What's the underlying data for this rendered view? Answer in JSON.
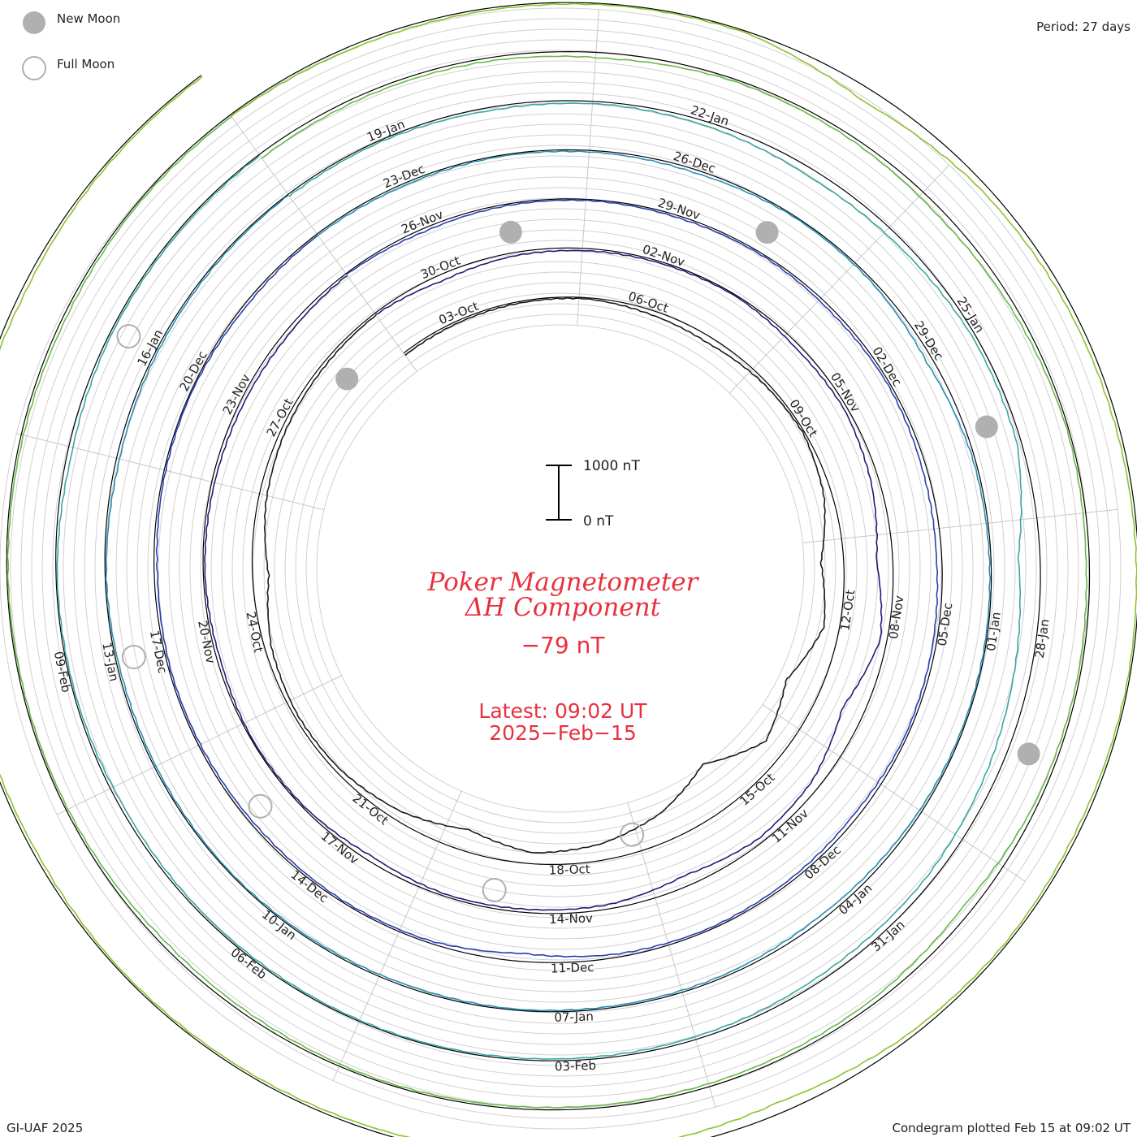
{
  "legend": {
    "new_moon_label": "New Moon",
    "full_moon_label": "Full Moon",
    "new_moon_color": "#b0b0b0",
    "full_moon_color": "#b0b0b0"
  },
  "period_label": "Period: 27 days",
  "footer": {
    "credit": "GI-UAF 2025",
    "plotted": "Condegram plotted Feb 15 at 09:02 UT"
  },
  "center": {
    "title_line1": "Poker Magnetometer",
    "title_line2": "ΔH Component",
    "current_value": "−79 nT",
    "latest": "Latest: 09:02 UT",
    "date": "2025−Feb−15",
    "scale_top": "1000 nT",
    "scale_bottom": "0 nT",
    "text_color": "#e8313f"
  },
  "chart_data": {
    "type": "line",
    "title": "Poker Magnetometer ΔH Component",
    "period_days": 27,
    "scale_nT": 1000,
    "date_labels": [
      "03-Oct",
      "06-Oct",
      "09-Oct",
      "12-Oct",
      "15-Oct",
      "18-Oct",
      "21-Oct",
      "24-Oct",
      "27-Oct",
      "30-Oct",
      "02-Nov",
      "05-Nov",
      "08-Nov",
      "11-Nov",
      "14-Nov",
      "17-Nov",
      "20-Nov",
      "23-Nov",
      "26-Nov",
      "29-Nov",
      "02-Dec",
      "05-Dec",
      "08-Dec",
      "11-Dec",
      "14-Dec",
      "17-Dec",
      "20-Dec",
      "23-Dec",
      "26-Dec",
      "29-Dec",
      "01-Jan",
      "04-Jan",
      "07-Jan",
      "10-Jan",
      "13-Jan",
      "16-Jan",
      "19-Jan",
      "22-Jan",
      "25-Jan",
      "28-Jan",
      "31-Jan",
      "03-Feb",
      "06-Feb",
      "09-Feb"
    ],
    "series": [
      {
        "values": [
          -50,
          -40,
          -30,
          -20,
          -80,
          -120,
          -60,
          -30,
          -150,
          -420,
          -280,
          -650,
          -380,
          -900,
          -520,
          -300,
          -200,
          -400,
          -180,
          -80,
          -60,
          -120,
          -300,
          -150,
          -80,
          -60,
          -40
        ]
      },
      {
        "values": [
          -30,
          -120,
          -60,
          -40,
          -30,
          -20,
          -80,
          -60,
          -150,
          -300,
          -120,
          -400,
          -160,
          -90,
          -200,
          -80,
          -60,
          -40,
          -100,
          -30,
          -20,
          -60,
          -30,
          -50,
          -70,
          -80,
          -40
        ]
      },
      {
        "values": [
          -20,
          -60,
          -30,
          -20,
          -40,
          -30,
          -60,
          -40,
          -80,
          -100,
          -60,
          -40,
          -80,
          -50,
          -30,
          -60,
          -150,
          -40,
          -30,
          -50,
          -40,
          -30,
          -60,
          -30,
          -20,
          -50,
          -30
        ]
      },
      {
        "values": [
          -30,
          -40,
          -20,
          -30,
          -60,
          -20,
          -40,
          -120,
          -40,
          -30,
          -20,
          -30,
          -60,
          -80,
          -40,
          -30,
          -20,
          -40,
          -30,
          -20,
          -30,
          -40,
          -20,
          -60,
          -40,
          -30,
          -20
        ]
      },
      {
        "values": [
          -40,
          -30,
          -60,
          -40,
          -80,
          -150,
          -120,
          -60,
          -80,
          -400,
          -300,
          -200,
          -120,
          -100,
          -60,
          -40,
          -30,
          -20,
          -30,
          -40,
          -60,
          -30,
          -20,
          -80,
          -40,
          -30,
          -20
        ]
      },
      {
        "values": [
          -80,
          -60,
          -60,
          -100,
          -40,
          -60,
          -120,
          -80,
          -30,
          -60,
          -40,
          -60,
          -160,
          -80,
          -60,
          -50,
          -40,
          -30,
          -60,
          -80,
          -40,
          -30,
          -20,
          -40,
          -60,
          -30,
          -40
        ]
      },
      {
        "values": [
          -30,
          -60,
          -40,
          -20,
          -30,
          -250,
          -120,
          -80,
          -60,
          -40,
          -30,
          -60,
          -40,
          -80,
          -200,
          -120,
          -80,
          -60,
          -40,
          -30,
          -60,
          -40,
          -20,
          -30,
          -80,
          -40,
          -30
        ]
      }
    ],
    "new_moons": [
      "01-Oct",
      "31-Oct",
      "30-Nov",
      "30-Dec",
      "29-Jan"
    ],
    "full_moons": [
      "17-Oct",
      "15-Nov",
      "15-Dec",
      "13-Jan",
      "12-Feb"
    ]
  }
}
